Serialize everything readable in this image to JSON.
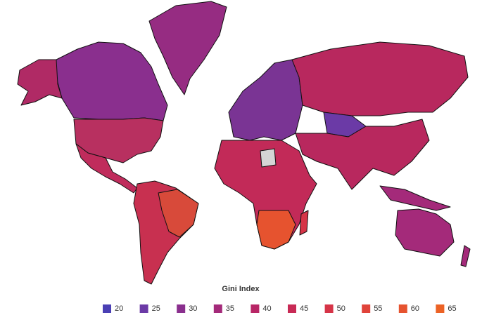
{
  "legend": {
    "title": "Gini Index",
    "items": [
      {
        "value": 20,
        "color": "#4a3fb4"
      },
      {
        "value": 25,
        "color": "#6b3aa6"
      },
      {
        "value": 30,
        "color": "#8a2f8e"
      },
      {
        "value": 35,
        "color": "#a42a7a"
      },
      {
        "value": 40,
        "color": "#b82666"
      },
      {
        "value": 45,
        "color": "#c82a55"
      },
      {
        "value": 50,
        "color": "#d63447"
      },
      {
        "value": 55,
        "color": "#e0433a"
      },
      {
        "value": 60,
        "color": "#e6532f"
      },
      {
        "value": 65,
        "color": "#ec6225"
      }
    ]
  }
}
